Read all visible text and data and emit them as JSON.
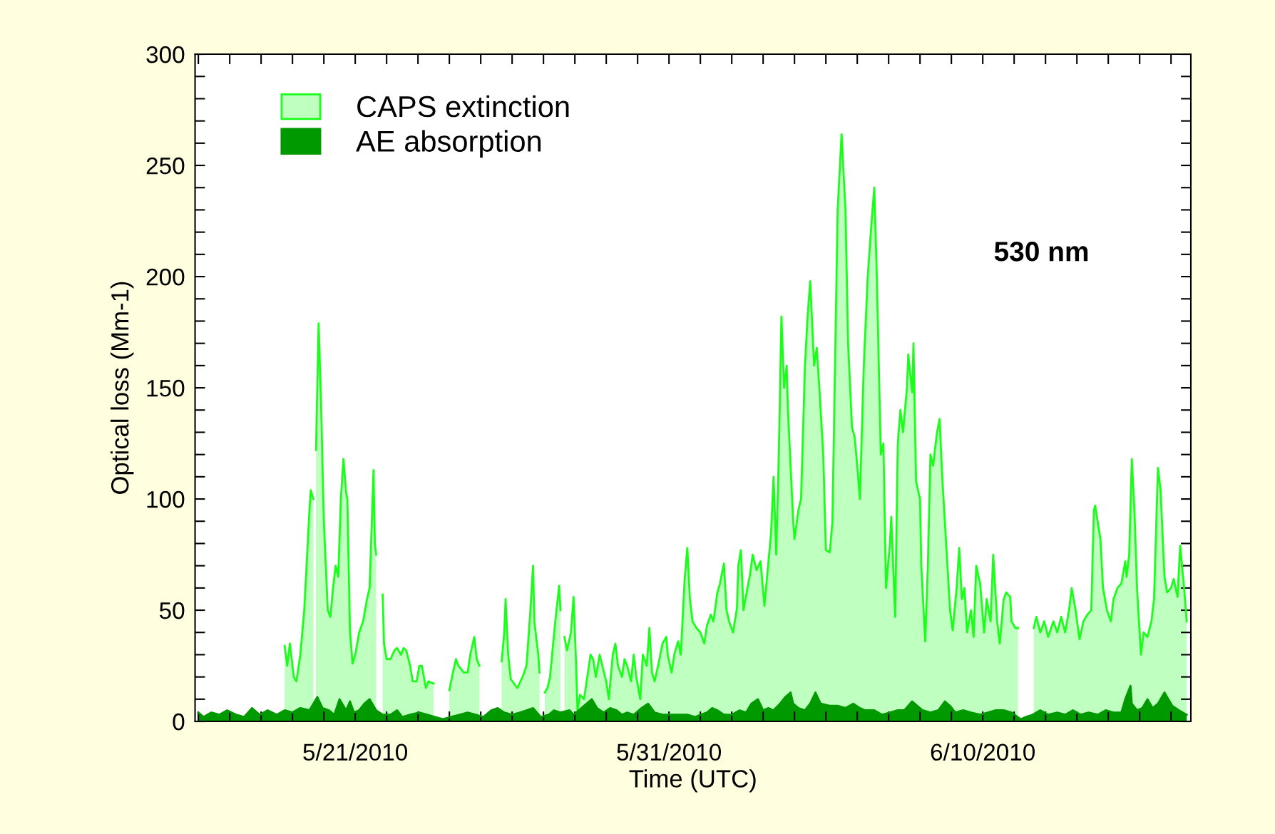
{
  "chart_data": {
    "type": "area",
    "xlabel": "Time (UTC)",
    "ylabel": "Optical loss (Mm-1)",
    "annotations": [
      "530 nm"
    ],
    "legend": "top left",
    "grid": false,
    "xlim": [
      "2010-05-15T21:30",
      "2010-06-16T15:10"
    ],
    "xticks": [
      {
        "value": "2010-05-16",
        "label": null
      },
      {
        "value": "2010-05-17",
        "label": null
      },
      {
        "value": "2010-05-18",
        "label": null
      },
      {
        "value": "2010-05-19",
        "label": null
      },
      {
        "value": "2010-05-20",
        "label": null
      },
      {
        "value": "2010-05-21",
        "label": "5/21/2010"
      },
      {
        "value": "2010-05-22",
        "label": null
      },
      {
        "value": "2010-05-23",
        "label": null
      },
      {
        "value": "2010-05-24",
        "label": null
      },
      {
        "value": "2010-05-25",
        "label": null
      },
      {
        "value": "2010-05-26",
        "label": null
      },
      {
        "value": "2010-05-27",
        "label": null
      },
      {
        "value": "2010-05-28",
        "label": null
      },
      {
        "value": "2010-05-29",
        "label": null
      },
      {
        "value": "2010-05-30",
        "label": null
      },
      {
        "value": "2010-05-31",
        "label": "5/31/2010"
      },
      {
        "value": "2010-06-01",
        "label": null
      },
      {
        "value": "2010-06-02",
        "label": null
      },
      {
        "value": "2010-06-03",
        "label": null
      },
      {
        "value": "2010-06-04",
        "label": null
      },
      {
        "value": "2010-06-05",
        "label": null
      },
      {
        "value": "2010-06-06",
        "label": null
      },
      {
        "value": "2010-06-07",
        "label": null
      },
      {
        "value": "2010-06-08",
        "label": null
      },
      {
        "value": "2010-06-09",
        "label": null
      },
      {
        "value": "2010-06-10",
        "label": "6/10/2010"
      },
      {
        "value": "2010-06-11",
        "label": null
      },
      {
        "value": "2010-06-12",
        "label": null
      },
      {
        "value": "2010-06-13",
        "label": null
      },
      {
        "value": "2010-06-14",
        "label": null
      },
      {
        "value": "2010-06-15",
        "label": null
      },
      {
        "value": "2010-06-16",
        "label": null
      }
    ],
    "ylim": [
      0,
      300
    ],
    "yticks": [
      0,
      {
        "value": 10,
        "label": null
      },
      {
        "value": 20,
        "label": null
      },
      {
        "value": 30,
        "label": null
      },
      {
        "value": 40,
        "label": null
      },
      50,
      {
        "value": 60,
        "label": null
      },
      {
        "value": 70,
        "label": null
      },
      {
        "value": 80,
        "label": null
      },
      {
        "value": 90,
        "label": null
      },
      100,
      {
        "value": 110,
        "label": null
      },
      {
        "value": 120,
        "label": null
      },
      {
        "value": 130,
        "label": null
      },
      {
        "value": 140,
        "label": null
      },
      150,
      {
        "value": 160,
        "label": null
      },
      {
        "value": 170,
        "label": null
      },
      {
        "value": 180,
        "label": null
      },
      {
        "value": 190,
        "label": null
      },
      200,
      {
        "value": 210,
        "label": null
      },
      {
        "value": 220,
        "label": null
      },
      {
        "value": 230,
        "label": null
      },
      {
        "value": 240,
        "label": null
      },
      250,
      {
        "value": 260,
        "label": null
      },
      {
        "value": 270,
        "label": null
      },
      {
        "value": 280,
        "label": null
      },
      {
        "value": 290,
        "label": null
      },
      300
    ],
    "series": [
      {
        "name": "CAPS extinction",
        "color": "#bfffbf",
        "x": [
          "2010-05-18T18:00",
          "2010-05-18T20:00",
          "2010-05-18T22:00",
          "2010-05-19T01:00",
          "2010-05-19T03:00",
          "2010-05-19T06:00",
          "2010-05-19T09:00",
          "2010-05-19T13:00",
          "2010-05-19T14:00",
          "2010-05-19T16:00",
          "2010-05-19T17:00",
          "2010-05-19T18:00",
          "2010-05-19T20:00",
          "2010-05-19T22:00",
          "2010-05-20T00:00",
          "2010-05-20T03:00",
          "2010-05-20T05:00",
          "2010-05-20T07:00",
          "2010-05-20T09:00",
          "2010-05-20T11:00",
          "2010-05-20T13:00",
          "2010-05-20T15:00",
          "2010-05-20T17:00",
          "2010-05-20T18:00",
          "2010-05-20T20:00",
          "2010-05-20T22:00",
          "2010-05-21T00:00",
          "2010-05-21T03:00",
          "2010-05-21T06:00",
          "2010-05-21T09:00",
          "2010-05-21T11:00",
          "2010-05-21T14:00",
          "2010-05-21T15:00",
          "2010-05-21T16:00",
          "2010-05-21T17:00",
          "2010-05-21T21:00",
          "2010-05-21T22:00",
          "2010-05-22T00:00",
          "2010-05-22T03:00",
          "2010-05-22T06:00",
          "2010-05-22T08:00",
          "2010-05-22T11:00",
          "2010-05-22T13:00",
          "2010-05-22T15:00",
          "2010-05-22T18:00",
          "2010-05-22T20:00",
          "2010-05-22T23:00",
          "2010-05-23T01:00",
          "2010-05-23T03:00",
          "2010-05-23T06:00",
          "2010-05-23T08:00",
          "2010-05-23T12:00",
          "2010-05-23T18:00",
          "2010-05-24T00:00",
          "2010-05-24T02:00",
          "2010-05-24T05:00",
          "2010-05-24T07:00",
          "2010-05-24T11:00",
          "2010-05-24T14:00",
          "2010-05-24T16:00",
          "2010-05-24T19:00",
          "2010-05-24T21:00",
          "2010-05-24T23:00",
          "2010-05-25T10:00",
          "2010-05-25T16:00",
          "2010-05-25T18:00",
          "2010-05-25T19:00",
          "2010-05-25T21:00",
          "2010-05-25T23:00",
          "2010-05-26T04:00",
          "2010-05-26T08:00",
          "2010-05-26T11:00",
          "2010-05-26T14:00",
          "2010-05-26T16:00",
          "2010-05-26T17:00",
          "2010-05-26T20:00",
          "2010-05-26T21:00",
          "2010-05-26T23:00",
          "2010-05-27T01:00",
          "2010-05-27T03:00",
          "2010-05-27T05:00",
          "2010-05-27T09:00",
          "2010-05-27T12:00",
          "2010-05-27T13:00",
          "2010-05-27T15:00",
          "2010-05-27T16:00",
          "2010-05-27T18:00",
          "2010-05-27T21:00",
          "2010-05-27T23:00",
          "2010-05-28T01:00",
          "2010-05-28T02:00",
          "2010-05-28T04:00",
          "2010-05-28T07:00",
          "2010-05-28T09:00",
          "2010-05-28T12:00",
          "2010-05-28T14:00",
          "2010-05-28T16:00",
          "2010-05-28T19:00",
          "2010-05-28T21:00",
          "2010-05-29T00:00",
          "2010-05-29T02:00",
          "2010-05-29T05:00",
          "2010-05-29T07:00",
          "2010-05-29T09:00",
          "2010-05-29T12:00",
          "2010-05-29T14:00",
          "2010-05-29T16:00",
          "2010-05-29T19:00",
          "2010-05-29T21:00",
          "2010-05-29T23:00",
          "2010-05-30T02:00",
          "2010-05-30T04:00",
          "2010-05-30T07:00",
          "2010-05-30T09:00",
          "2010-05-30T11:00",
          "2010-05-30T13:00",
          "2010-05-30T16:00",
          "2010-05-30T19:00",
          "2010-05-30T22:00",
          "2010-05-30T23:00",
          "2010-05-31T02:00",
          "2010-05-31T04:00",
          "2010-05-31T07:00",
          "2010-05-31T09:00",
          "2010-05-31T12:00",
          "2010-05-31T14:00",
          "2010-05-31T16:00",
          "2010-05-31T18:00",
          "2010-05-31T21:00",
          "2010-06-01T00:00",
          "2010-06-01T03:00",
          "2010-06-01T05:00",
          "2010-06-01T08:00",
          "2010-06-01T10:00",
          "2010-06-01T13:00",
          "2010-06-01T15:00",
          "2010-06-01T18:00",
          "2010-06-01T20:00",
          "2010-06-01T22:00",
          "2010-06-02T01:00",
          "2010-06-02T04:00",
          "2010-06-02T05:00",
          "2010-06-02T07:00",
          "2010-06-02T09:00",
          "2010-06-02T12:00",
          "2010-06-02T14:00",
          "2010-06-02T16:00",
          "2010-06-02T19:00",
          "2010-06-02T22:00",
          "2010-06-03T01:00",
          "2010-06-03T03:00",
          "2010-06-03T06:00",
          "2010-06-03T08:00",
          "2010-06-03T10:00",
          "2010-06-03T12:00",
          "2010-06-03T14:00",
          "2010-06-03T16:00",
          "2010-06-03T18:00",
          "2010-06-03T19:00",
          "2010-06-03T23:00",
          "2010-06-04T00:00",
          "2010-06-04T03:00",
          "2010-06-04T05:00",
          "2010-06-04T08:00",
          "2010-06-04T10:00",
          "2010-06-04T12:00",
          "2010-06-04T15:00",
          "2010-06-04T17:00",
          "2010-06-04T19:00",
          "2010-06-04T22:00",
          "2010-06-05T00:00",
          "2010-06-05T03:00",
          "2010-06-05T05:00",
          "2010-06-05T07:00",
          "2010-06-05T09:00",
          "2010-06-05T12:00",
          "2010-06-05T15:00",
          "2010-06-05T17:00",
          "2010-06-05T20:00",
          "2010-06-05T22:00",
          "2010-06-06T00:00",
          "2010-06-06T02:00",
          "2010-06-06T05:00",
          "2010-06-06T08:00",
          "2010-06-06T11:00",
          "2010-06-06T13:00",
          "2010-06-06T15:00",
          "2010-06-06T18:00",
          "2010-06-06T20:00",
          "2010-06-06T22:00",
          "2010-06-07T01:00",
          "2010-06-07T02:00",
          "2010-06-07T05:00",
          "2010-06-07T07:00",
          "2010-06-07T09:00",
          "2010-06-07T11:00",
          "2010-06-07T14:00",
          "2010-06-07T15:00",
          "2010-06-07T18:00",
          "2010-06-07T19:00",
          "2010-06-07T21:00",
          "2010-06-08T00:00",
          "2010-06-08T01:00",
          "2010-06-08T04:00",
          "2010-06-08T06:00",
          "2010-06-08T08:00",
          "2010-06-08T10:00",
          "2010-06-08T13:00",
          "2010-06-08T15:00",
          "2010-06-08T17:00",
          "2010-06-08T19:00",
          "2010-06-08T23:00",
          "2010-06-09T01:00",
          "2010-06-09T04:00",
          "2010-06-09T06:00",
          "2010-06-09T08:00",
          "2010-06-09T10:00",
          "2010-06-09T12:00",
          "2010-06-09T15:00",
          "2010-06-09T17:00",
          "2010-06-09T19:00",
          "2010-06-09T22:00",
          "2010-06-10T01:00",
          "2010-06-10T03:00",
          "2010-06-10T06:00",
          "2010-06-10T08:00",
          "2010-06-10T11:00",
          "2010-06-10T13:00",
          "2010-06-10T16:00",
          "2010-06-10T18:00",
          "2010-06-10T21:00",
          "2010-06-10T22:00",
          "2010-06-11T01:00",
          "2010-06-11T03:00",
          "2010-06-11T09:00",
          "2010-06-11T15:00",
          "2010-06-11T17:00",
          "2010-06-11T20:00",
          "2010-06-11T23:00",
          "2010-06-12T02:00",
          "2010-06-12T06:00",
          "2010-06-12T09:00",
          "2010-06-12T12:00",
          "2010-06-12T15:00",
          "2010-06-12T18:00",
          "2010-06-12T20:00",
          "2010-06-12T23:00",
          "2010-06-13T02:00",
          "2010-06-13T05:00",
          "2010-06-13T08:00",
          "2010-06-13T11:00",
          "2010-06-13T13:00",
          "2010-06-13T14:00",
          "2010-06-13T18:00",
          "2010-06-13T20:00",
          "2010-06-13T23:00",
          "2010-06-14T02:00",
          "2010-06-14T04:00",
          "2010-06-14T07:00",
          "2010-06-14T10:00",
          "2010-06-14T13:00",
          "2010-06-14T14:00",
          "2010-06-14T16:00",
          "2010-06-14T18:00",
          "2010-06-14T20:00",
          "2010-06-14T22:00",
          "2010-06-15T01:00",
          "2010-06-15T03:00",
          "2010-06-15T06:00",
          "2010-06-15T09:00",
          "2010-06-15T11:00",
          "2010-06-15T14:00",
          "2010-06-15T16:00",
          "2010-06-15T19:00",
          "2010-06-15T21:00",
          "2010-06-16T00:00",
          "2010-06-16T02:00",
          "2010-06-16T05:00",
          "2010-06-16T07:00",
          "2010-06-16T10:00",
          "2010-06-16T12:00"
        ],
        "values": [
          34,
          25,
          35,
          20,
          18,
          30,
          50,
          95,
          104,
          100,
          null,
          122,
          179,
          140,
          90,
          50,
          47,
          60,
          70,
          65,
          100,
          118,
          103,
          100,
          40,
          26,
          30,
          40,
          45,
          55,
          60,
          113,
          80,
          75,
          null,
          57,
          35,
          28,
          28,
          32,
          33,
          30,
          33,
          32,
          25,
          18,
          18,
          25,
          25,
          15,
          18,
          17,
          null,
          14,
          20,
          28,
          25,
          22,
          22,
          30,
          38,
          28,
          25,
          null,
          27,
          40,
          55,
          30,
          19,
          15,
          20,
          25,
          50,
          70,
          45,
          30,
          22,
          null,
          13,
          15,
          20,
          45,
          61,
          50,
          null,
          38,
          32,
          40,
          56,
          25,
          5,
          12,
          10,
          18,
          30,
          28,
          20,
          30,
          25,
          18,
          10,
          30,
          35,
          25,
          20,
          28,
          25,
          18,
          30,
          20,
          10,
          30,
          25,
          42,
          22,
          18,
          26,
          35,
          38,
          30,
          22,
          30,
          36,
          30,
          64,
          78,
          55,
          45,
          42,
          40,
          35,
          43,
          48,
          45,
          58,
          62,
          71,
          50,
          45,
          40,
          51,
          70,
          77,
          50,
          60,
          66,
          75,
          68,
          72,
          52,
          65,
          84,
          110,
          75,
          120,
          182,
          150,
          160,
          140,
          90,
          82,
          95,
          100,
          160,
          182,
          198,
          160,
          168,
          150,
          120,
          77,
          76,
          90,
          160,
          230,
          264,
          230,
          170,
          132,
          128,
          115,
          100,
          160,
          200,
          225,
          240,
          200,
          120,
          125,
          60,
          80,
          92,
          47,
          125,
          140,
          130,
          150,
          165,
          148,
          170,
          108,
          100,
          70,
          36,
          70,
          120,
          115,
          130,
          136,
          110,
          90,
          50,
          41,
          60,
          78,
          55,
          60,
          40,
          50,
          38,
          70,
          62,
          40,
          55,
          45,
          75,
          45,
          35,
          55,
          58,
          56,
          45,
          42,
          42,
          null,
          42,
          47,
          40,
          45,
          38,
          45,
          40,
          47,
          40,
          50,
          60,
          50,
          37,
          45,
          48,
          50,
          95,
          97,
          82,
          60,
          50,
          45,
          55,
          60,
          62,
          72,
          65,
          75,
          118,
          95,
          60,
          30,
          40,
          38,
          45,
          55,
          114,
          104,
          65,
          58,
          60,
          64,
          56,
          79,
          60,
          45
        ]
      },
      {
        "name": "AE absorption",
        "color": "#009900",
        "x": [
          "2010-05-16T00:00",
          "2010-05-16T04:00",
          "2010-05-16T10:00",
          "2010-05-16T16:00",
          "2010-05-16T22:00",
          "2010-05-17T05:00",
          "2010-05-17T11:00",
          "2010-05-17T17:00",
          "2010-05-17T23:00",
          "2010-05-18T05:00",
          "2010-05-18T12:00",
          "2010-05-18T18:00",
          "2010-05-19T00:00",
          "2010-05-19T06:00",
          "2010-05-19T13:00",
          "2010-05-19T16:00",
          "2010-05-19T19:00",
          "2010-05-19T23:00",
          "2010-05-20T04:00",
          "2010-05-20T08:00",
          "2010-05-20T12:00",
          "2010-05-20T17:00",
          "2010-05-20T20:00",
          "2010-05-20T23:00",
          "2010-05-21T03:00",
          "2010-05-21T07:00",
          "2010-05-21T11:00",
          "2010-05-21T16:00",
          "2010-05-21T21:00",
          "2010-05-22T03:00",
          "2010-05-22T08:00",
          "2010-05-22T12:00",
          "2010-05-22T18:00",
          "2010-05-23T01:00",
          "2010-05-23T07:00",
          "2010-05-23T13:00",
          "2010-05-23T19:00",
          "2010-05-24T01:00",
          "2010-05-24T08:00",
          "2010-05-24T14:00",
          "2010-05-24T20:00",
          "2010-05-25T02:00",
          "2010-05-25T08:00",
          "2010-05-25T13:00",
          "2010-05-25T18:00",
          "2010-05-26T00:00",
          "2010-05-26T06:00",
          "2010-05-26T11:00",
          "2010-05-26T16:00",
          "2010-05-26T22:00",
          "2010-05-27T04:00",
          "2010-05-27T08:00",
          "2010-05-27T13:00",
          "2010-05-27T20:00",
          "2010-05-27T23:00",
          "2010-05-28T05:00",
          "2010-05-28T09:00",
          "2010-05-28T13:00",
          "2010-05-28T17:00",
          "2010-05-28T22:00",
          "2010-05-29T03:00",
          "2010-05-29T08:00",
          "2010-05-29T12:00",
          "2010-05-29T16:00",
          "2010-05-29T21:00",
          "2010-05-30T03:00",
          "2010-05-30T08:00",
          "2010-05-30T13:00",
          "2010-05-30T19:00",
          "2010-05-31T01:00",
          "2010-05-31T07:00",
          "2010-05-31T14:00",
          "2010-05-31T20:00",
          "2010-06-01T00:00",
          "2010-06-01T05:00",
          "2010-06-01T09:00",
          "2010-06-01T13:00",
          "2010-06-01T18:00",
          "2010-06-02T00:00",
          "2010-06-02T06:00",
          "2010-06-02T11:00",
          "2010-06-02T15:00",
          "2010-06-02T20:00",
          "2010-06-03T00:00",
          "2010-06-03T04:00",
          "2010-06-03T08:00",
          "2010-06-03T13:00",
          "2010-06-03T17:00",
          "2010-06-03T21:00",
          "2010-06-03T23:00",
          "2010-06-04T03:00",
          "2010-06-04T08:00",
          "2010-06-04T12:00",
          "2010-06-04T16:00",
          "2010-06-04T20:00",
          "2010-06-05T03:00",
          "2010-06-05T09:00",
          "2010-06-05T15:00",
          "2010-06-05T21:00",
          "2010-06-06T02:00",
          "2010-06-06T06:00",
          "2010-06-06T13:00",
          "2010-06-06T19:00",
          "2010-06-07T01:00",
          "2010-06-07T07:00",
          "2010-06-07T12:00",
          "2010-06-07T18:00",
          "2010-06-07T22:00",
          "2010-06-08T02:00",
          "2010-06-08T08:00",
          "2010-06-08T14:00",
          "2010-06-08T19:00",
          "2010-06-08T23:00",
          "2010-06-09T03:00",
          "2010-06-09T09:00",
          "2010-06-09T15:00",
          "2010-06-09T22:00",
          "2010-06-10T04:00",
          "2010-06-10T10:00",
          "2010-06-10T16:00",
          "2010-06-10T22:00",
          "2010-06-11T05:00",
          "2010-06-11T09:00",
          "2010-06-11T14:00",
          "2010-06-11T20:00",
          "2010-06-12T02:00",
          "2010-06-12T09:00",
          "2010-06-12T15:00",
          "2010-06-12T21:00",
          "2010-06-13T03:00",
          "2010-06-13T09:00",
          "2010-06-13T16:00",
          "2010-06-13T22:00",
          "2010-06-14T04:00",
          "2010-06-14T10:00",
          "2010-06-14T13:00",
          "2010-06-14T17:00",
          "2010-06-14T18:00",
          "2010-06-14T22:00",
          "2010-06-15T02:00",
          "2010-06-15T06:00",
          "2010-06-15T10:00",
          "2010-06-15T14:00",
          "2010-06-15T19:00",
          "2010-06-15T22:00",
          "2010-06-16T01:00",
          "2010-06-16T06:00",
          "2010-06-16T12:00"
        ],
        "values": [
          4,
          2,
          4,
          3,
          5,
          3,
          2,
          6,
          3,
          5,
          3,
          5,
          4,
          6,
          5,
          8,
          11,
          6,
          5,
          3,
          10,
          5,
          9,
          4,
          5,
          8,
          10,
          5,
          3,
          3,
          5,
          2,
          3,
          4,
          3,
          2,
          1,
          2,
          3,
          4,
          3,
          2,
          5,
          6,
          4,
          3,
          4,
          5,
          6,
          2,
          3,
          5,
          4,
          5,
          3,
          6,
          8,
          10,
          6,
          4,
          6,
          5,
          3,
          4,
          3,
          6,
          8,
          4,
          3,
          3,
          3,
          3,
          2,
          3,
          4,
          6,
          5,
          3,
          3,
          5,
          4,
          8,
          10,
          5,
          6,
          5,
          8,
          11,
          13,
          8,
          6,
          5,
          8,
          13,
          8,
          7,
          7,
          6,
          8,
          6,
          5,
          5,
          3,
          4,
          5,
          5,
          9,
          7,
          5,
          4,
          5,
          9,
          7,
          4,
          5,
          4,
          3,
          4,
          5,
          5,
          4,
          1,
          2,
          3,
          5,
          3,
          4,
          3,
          5,
          3,
          4,
          3,
          5,
          4,
          4,
          10,
          16,
          8,
          5,
          6,
          10,
          6,
          8,
          13,
          10,
          7,
          5,
          3
        ]
      }
    ]
  }
}
